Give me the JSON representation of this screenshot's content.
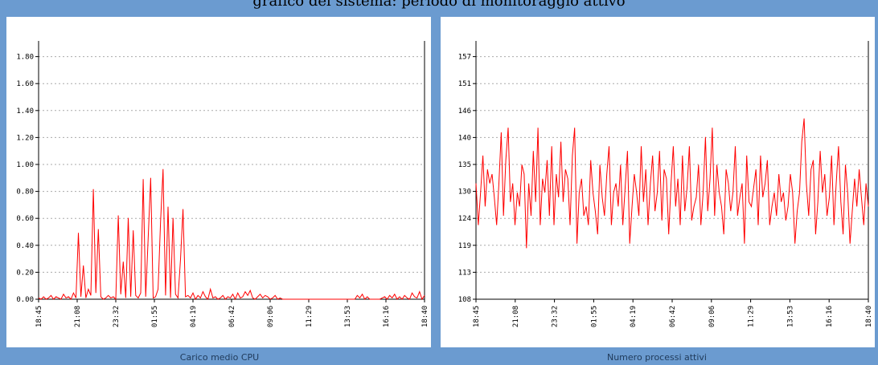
{
  "window": {
    "title": "grafico del sistema: periodo di monitoraggio attivo"
  },
  "chart_data": [
    {
      "type": "line",
      "title": "Carico medio CPU",
      "xlabel": "",
      "ylabel": "",
      "x_ticks": [
        "18:45",
        "21:08",
        "23:32",
        "01:55",
        "04:19",
        "06:42",
        "09:06",
        "11:29",
        "13:53",
        "16:16",
        "18:40"
      ],
      "y_ticks": [
        "0.00",
        "0.20",
        "0.40",
        "0.60",
        "0.80",
        "1.00",
        "1.20",
        "1.40",
        "1.60",
        "1.80"
      ],
      "ylim": [
        0,
        2.0
      ],
      "grid": true,
      "color": "#ff0000",
      "series": [
        {
          "values": [
            0.01,
            0.0,
            0.02,
            0.0,
            0.01,
            0.03,
            0.0,
            0.02,
            0.01,
            0.0,
            0.04,
            0.01,
            0.02,
            0.0,
            0.05,
            0.01,
            0.53,
            0.02,
            0.27,
            0.01,
            0.08,
            0.03,
            0.88,
            0.05,
            0.56,
            0.02,
            0.0,
            0.01,
            0.03,
            0.01,
            0.02,
            0.0,
            0.67,
            0.04,
            0.3,
            0.01,
            0.65,
            0.02,
            0.55,
            0.03,
            0.01,
            0.05,
            0.96,
            0.02,
            0.49,
            0.97,
            0.01,
            0.02,
            0.08,
            0.62,
            1.04,
            0.03,
            0.74,
            0.01,
            0.65,
            0.04,
            0.01,
            0.32,
            0.72,
            0.02,
            0.03,
            0.01,
            0.05,
            0.0,
            0.03,
            0.01,
            0.06,
            0.02,
            0.0,
            0.08,
            0.01,
            0.02,
            0.0,
            0.01,
            0.03,
            0.0,
            0.02,
            0.01,
            0.04,
            0.0,
            0.05,
            0.01,
            0.02,
            0.06,
            0.03,
            0.07,
            0.01,
            0.0,
            0.02,
            0.04,
            0.01,
            0.03,
            0.02,
            0.0,
            0.01,
            0.03,
            0.0,
            0.01,
            0.0,
            0.0,
            0.0,
            0.0,
            0.0,
            0.0,
            0.0,
            0.0,
            0.0,
            0.0,
            0.0,
            0.0,
            0.0,
            0.0,
            0.0,
            0.0,
            0.0,
            0.0,
            0.0,
            0.0,
            0.0,
            0.0,
            0.0,
            0.0,
            0.0,
            0.0,
            0.0,
            0.0,
            0.0,
            0.0,
            0.03,
            0.01,
            0.04,
            0.0,
            0.02,
            0.0,
            0.0,
            0.0,
            0.0,
            0.0,
            0.01,
            0.02,
            0.0,
            0.03,
            0.01,
            0.04,
            0.0,
            0.02,
            0.0,
            0.03,
            0.01,
            0.0,
            0.05,
            0.02,
            0.01,
            0.06,
            0.0,
            0.03
          ]
        }
      ]
    },
    {
      "type": "line",
      "title": "Numero processi attivi",
      "xlabel": "",
      "ylabel": "",
      "x_ticks": [
        "18:45",
        "21:08",
        "23:32",
        "01:55",
        "04:19",
        "06:42",
        "09:06",
        "11:29",
        "13:53",
        "16:16",
        "18:40"
      ],
      "y_ticks": [
        "108",
        "113",
        "119",
        "124",
        "130",
        "135",
        "140",
        "146",
        "151",
        "157"
      ],
      "ylim": [
        108,
        162
      ],
      "grid": true,
      "color": "#ff0000",
      "series": [
        {
          "values": [
            133,
            124,
            131,
            139,
            128,
            136,
            133,
            135,
            130,
            124,
            133,
            144,
            126,
            138,
            145,
            129,
            133,
            124,
            131,
            128,
            137,
            135,
            119,
            133,
            126,
            140,
            129,
            145,
            124,
            134,
            131,
            138,
            126,
            141,
            124,
            135,
            130,
            142,
            129,
            136,
            134,
            124,
            139,
            145,
            120,
            131,
            134,
            126,
            128,
            124,
            138,
            131,
            127,
            122,
            137,
            130,
            126,
            135,
            141,
            124,
            131,
            133,
            128,
            137,
            124,
            132,
            140,
            120,
            128,
            135,
            131,
            126,
            141,
            129,
            136,
            124,
            133,
            139,
            127,
            131,
            140,
            125,
            136,
            134,
            122,
            133,
            141,
            128,
            134,
            124,
            139,
            127,
            132,
            141,
            125,
            128,
            130,
            137,
            124,
            131,
            143,
            127,
            134,
            145,
            126,
            137,
            131,
            128,
            122,
            136,
            133,
            127,
            131,
            141,
            126,
            130,
            133,
            120,
            139,
            129,
            128,
            132,
            136,
            124,
            139,
            130,
            133,
            138,
            124,
            128,
            131,
            126,
            135,
            129,
            131,
            125,
            128,
            135,
            131,
            120,
            127,
            131,
            142,
            147,
            133,
            126,
            136,
            138,
            122,
            129,
            140,
            131,
            135,
            126,
            130,
            139,
            124,
            133,
            141,
            129,
            122,
            137,
            131,
            120,
            127,
            134,
            128,
            136,
            130,
            124,
            133,
            128
          ]
        }
      ]
    }
  ]
}
